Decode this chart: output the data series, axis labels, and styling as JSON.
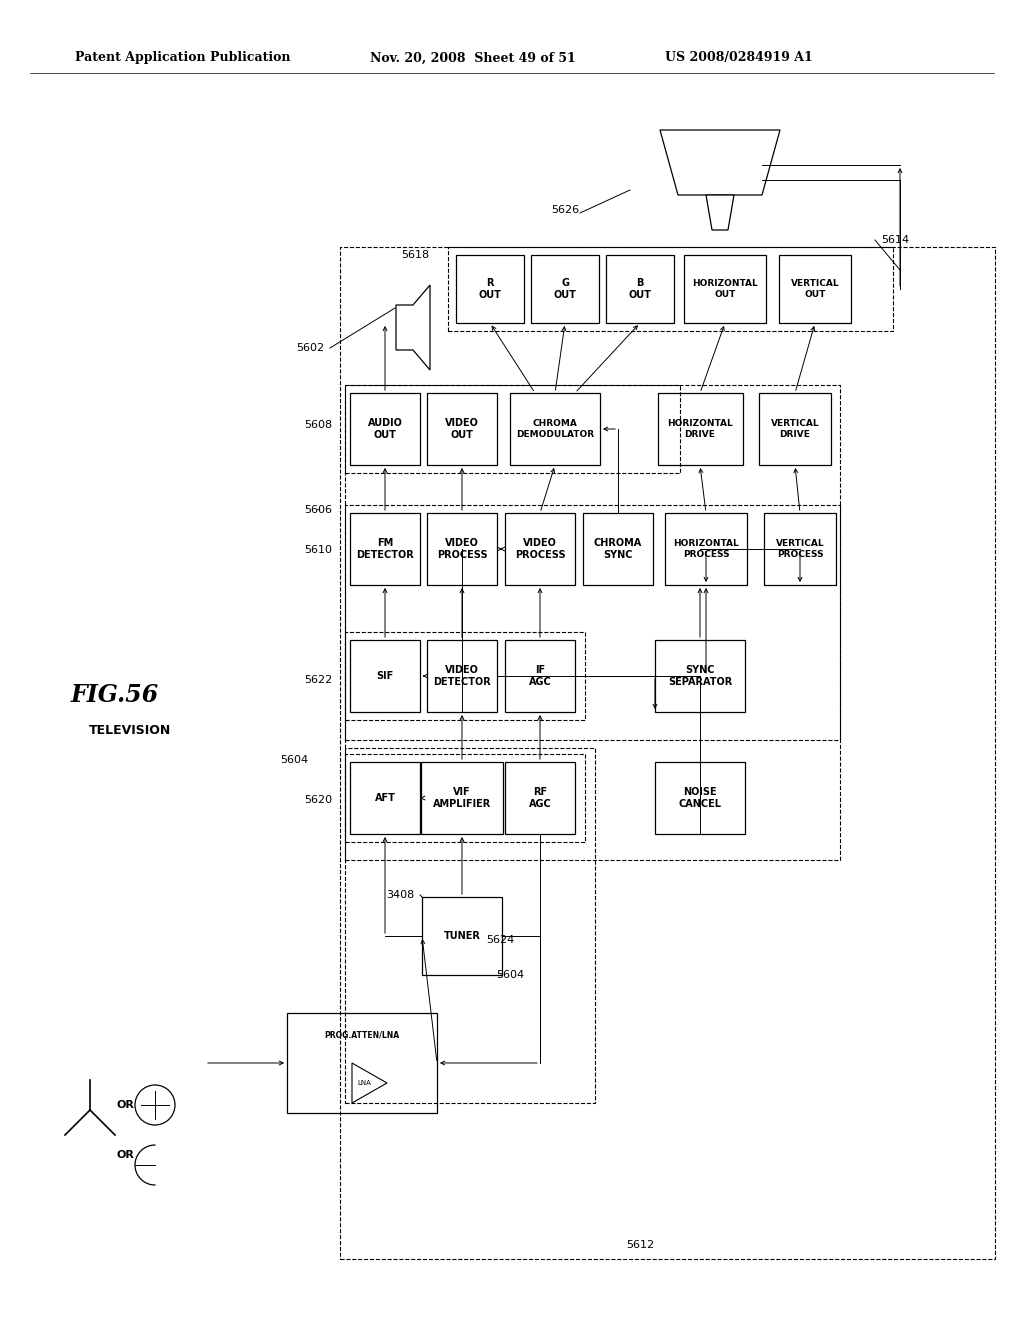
{
  "background": "#ffffff",
  "header_left": "Patent Application Publication",
  "header_mid": "Nov. 20, 2008  Sheet 49 of 51",
  "header_right": "US 2008/0284919 A1",
  "fig_label": "FIG.56",
  "fig_sublabel": "TELEVISION"
}
